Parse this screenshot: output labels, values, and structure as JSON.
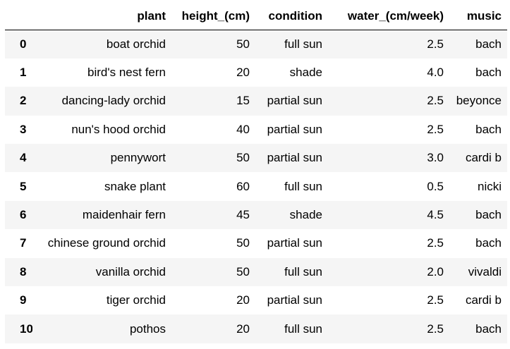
{
  "table": {
    "columns": [
      "",
      "plant",
      "height_(cm)",
      "condition",
      "water_(cm/week)",
      "music"
    ],
    "rows": [
      [
        "0",
        "boat orchid",
        "50",
        "full sun",
        "2.5",
        "bach"
      ],
      [
        "1",
        "bird's nest fern",
        "20",
        "shade",
        "4.0",
        "bach"
      ],
      [
        "2",
        "dancing-lady orchid",
        "15",
        "partial sun",
        "2.5",
        "beyonce"
      ],
      [
        "3",
        "nun's hood orchid",
        "40",
        "partial sun",
        "2.5",
        "bach"
      ],
      [
        "4",
        "pennywort",
        "50",
        "partial sun",
        "3.0",
        "cardi b"
      ],
      [
        "5",
        "snake plant",
        "60",
        "full sun",
        "0.5",
        "nicki"
      ],
      [
        "6",
        "maidenhair fern",
        "45",
        "shade",
        "4.5",
        "bach"
      ],
      [
        "7",
        "chinese ground orchid",
        "50",
        "partial sun",
        "2.5",
        "bach"
      ],
      [
        "8",
        "vanilla orchid",
        "50",
        "full sun",
        "2.0",
        "vivaldi"
      ],
      [
        "9",
        "tiger orchid",
        "20",
        "partial sun",
        "2.5",
        "cardi b"
      ],
      [
        "10",
        "pothos",
        "20",
        "full sun",
        "2.5",
        "bach"
      ]
    ]
  },
  "colors": {
    "stripe": "#f5f5f5",
    "header_rule": "#000000",
    "text": "#000000"
  }
}
